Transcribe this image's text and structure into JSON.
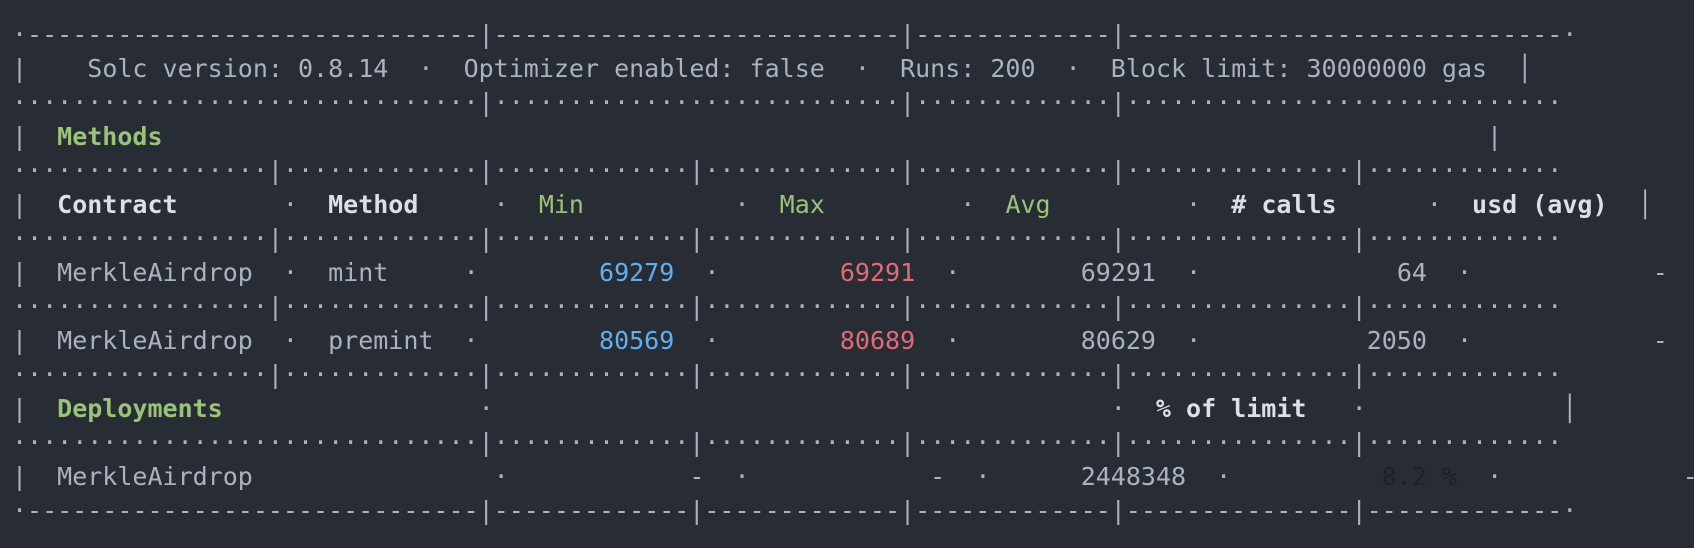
{
  "config": {
    "solc": "Solc version: 0.8.14",
    "optimizer": "Optimizer enabled: false",
    "runs": "Runs: 200",
    "block_limit": "Block limit: 30000000 gas"
  },
  "methods_section": {
    "title": "Methods",
    "headers": {
      "contract": "Contract",
      "method": "Method",
      "min": "Min",
      "max": "Max",
      "avg": "Avg",
      "calls": "# calls",
      "usd": "usd (avg)"
    },
    "rows": [
      {
        "contract": "MerkleAirdrop",
        "method": "mint",
        "min": "69279",
        "max": "69291",
        "avg": "69291",
        "calls": "64",
        "usd": "-"
      },
      {
        "contract": "MerkleAirdrop",
        "method": "premint",
        "min": "80569",
        "max": "80689",
        "avg": "80629",
        "calls": "2050",
        "usd": "-"
      }
    ]
  },
  "deployments_section": {
    "title": "Deployments",
    "percent_header": "% of limit",
    "rows": [
      {
        "contract": "MerkleAirdrop",
        "min": "-",
        "max": "-",
        "avg": "2448348",
        "percent": "8.2 %",
        "usd": "-"
      }
    ]
  },
  "colors": {
    "background": "#282c34",
    "text": "#abb2bf",
    "green": "#98c379",
    "min_blue": "#61afef",
    "max_red": "#e06c75"
  }
}
